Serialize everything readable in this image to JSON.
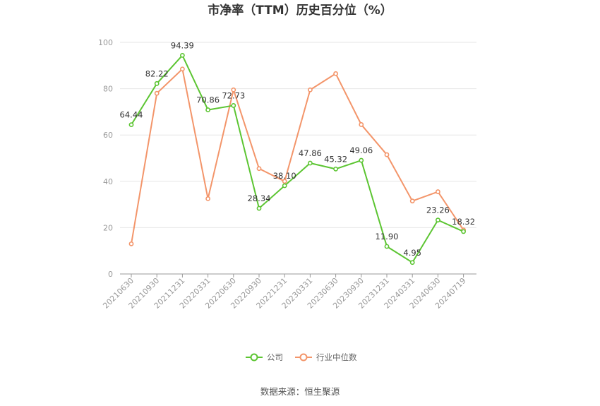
{
  "chart_data": {
    "type": "line",
    "title": "市净率（TTM）历史百分位（%）",
    "categories": [
      "20210630",
      "20210930",
      "20211231",
      "20220331",
      "20220630",
      "20220930",
      "20221231",
      "20230331",
      "20230630",
      "20230930",
      "20231231",
      "20240331",
      "20240630",
      "20240719"
    ],
    "series": [
      {
        "name": "公司",
        "color": "#5cc532",
        "values": [
          64.44,
          82.22,
          94.39,
          70.86,
          72.73,
          28.34,
          38.1,
          47.86,
          45.32,
          49.06,
          11.9,
          4.95,
          23.26,
          18.32
        ],
        "labels": [
          "64.44",
          "82.22",
          "94.39",
          "70.86",
          "72.73",
          "28.34",
          "38.10",
          "47.86",
          "45.32",
          "49.06",
          "11.90",
          "4.95",
          "23.26",
          "18.32"
        ]
      },
      {
        "name": "行业中位数",
        "color": "#f3956a",
        "values": [
          13,
          78,
          88.5,
          32.5,
          79.5,
          45.5,
          40,
          79.5,
          86.5,
          64.5,
          51.5,
          31.5,
          35.5,
          19
        ]
      }
    ],
    "yticks": [
      "0",
      "20",
      "40",
      "60",
      "80",
      "100"
    ],
    "ylim": [
      0,
      100
    ],
    "grid": true,
    "legend": "bottom-center"
  },
  "footer": {
    "source": "数据来源：恒生聚源"
  }
}
